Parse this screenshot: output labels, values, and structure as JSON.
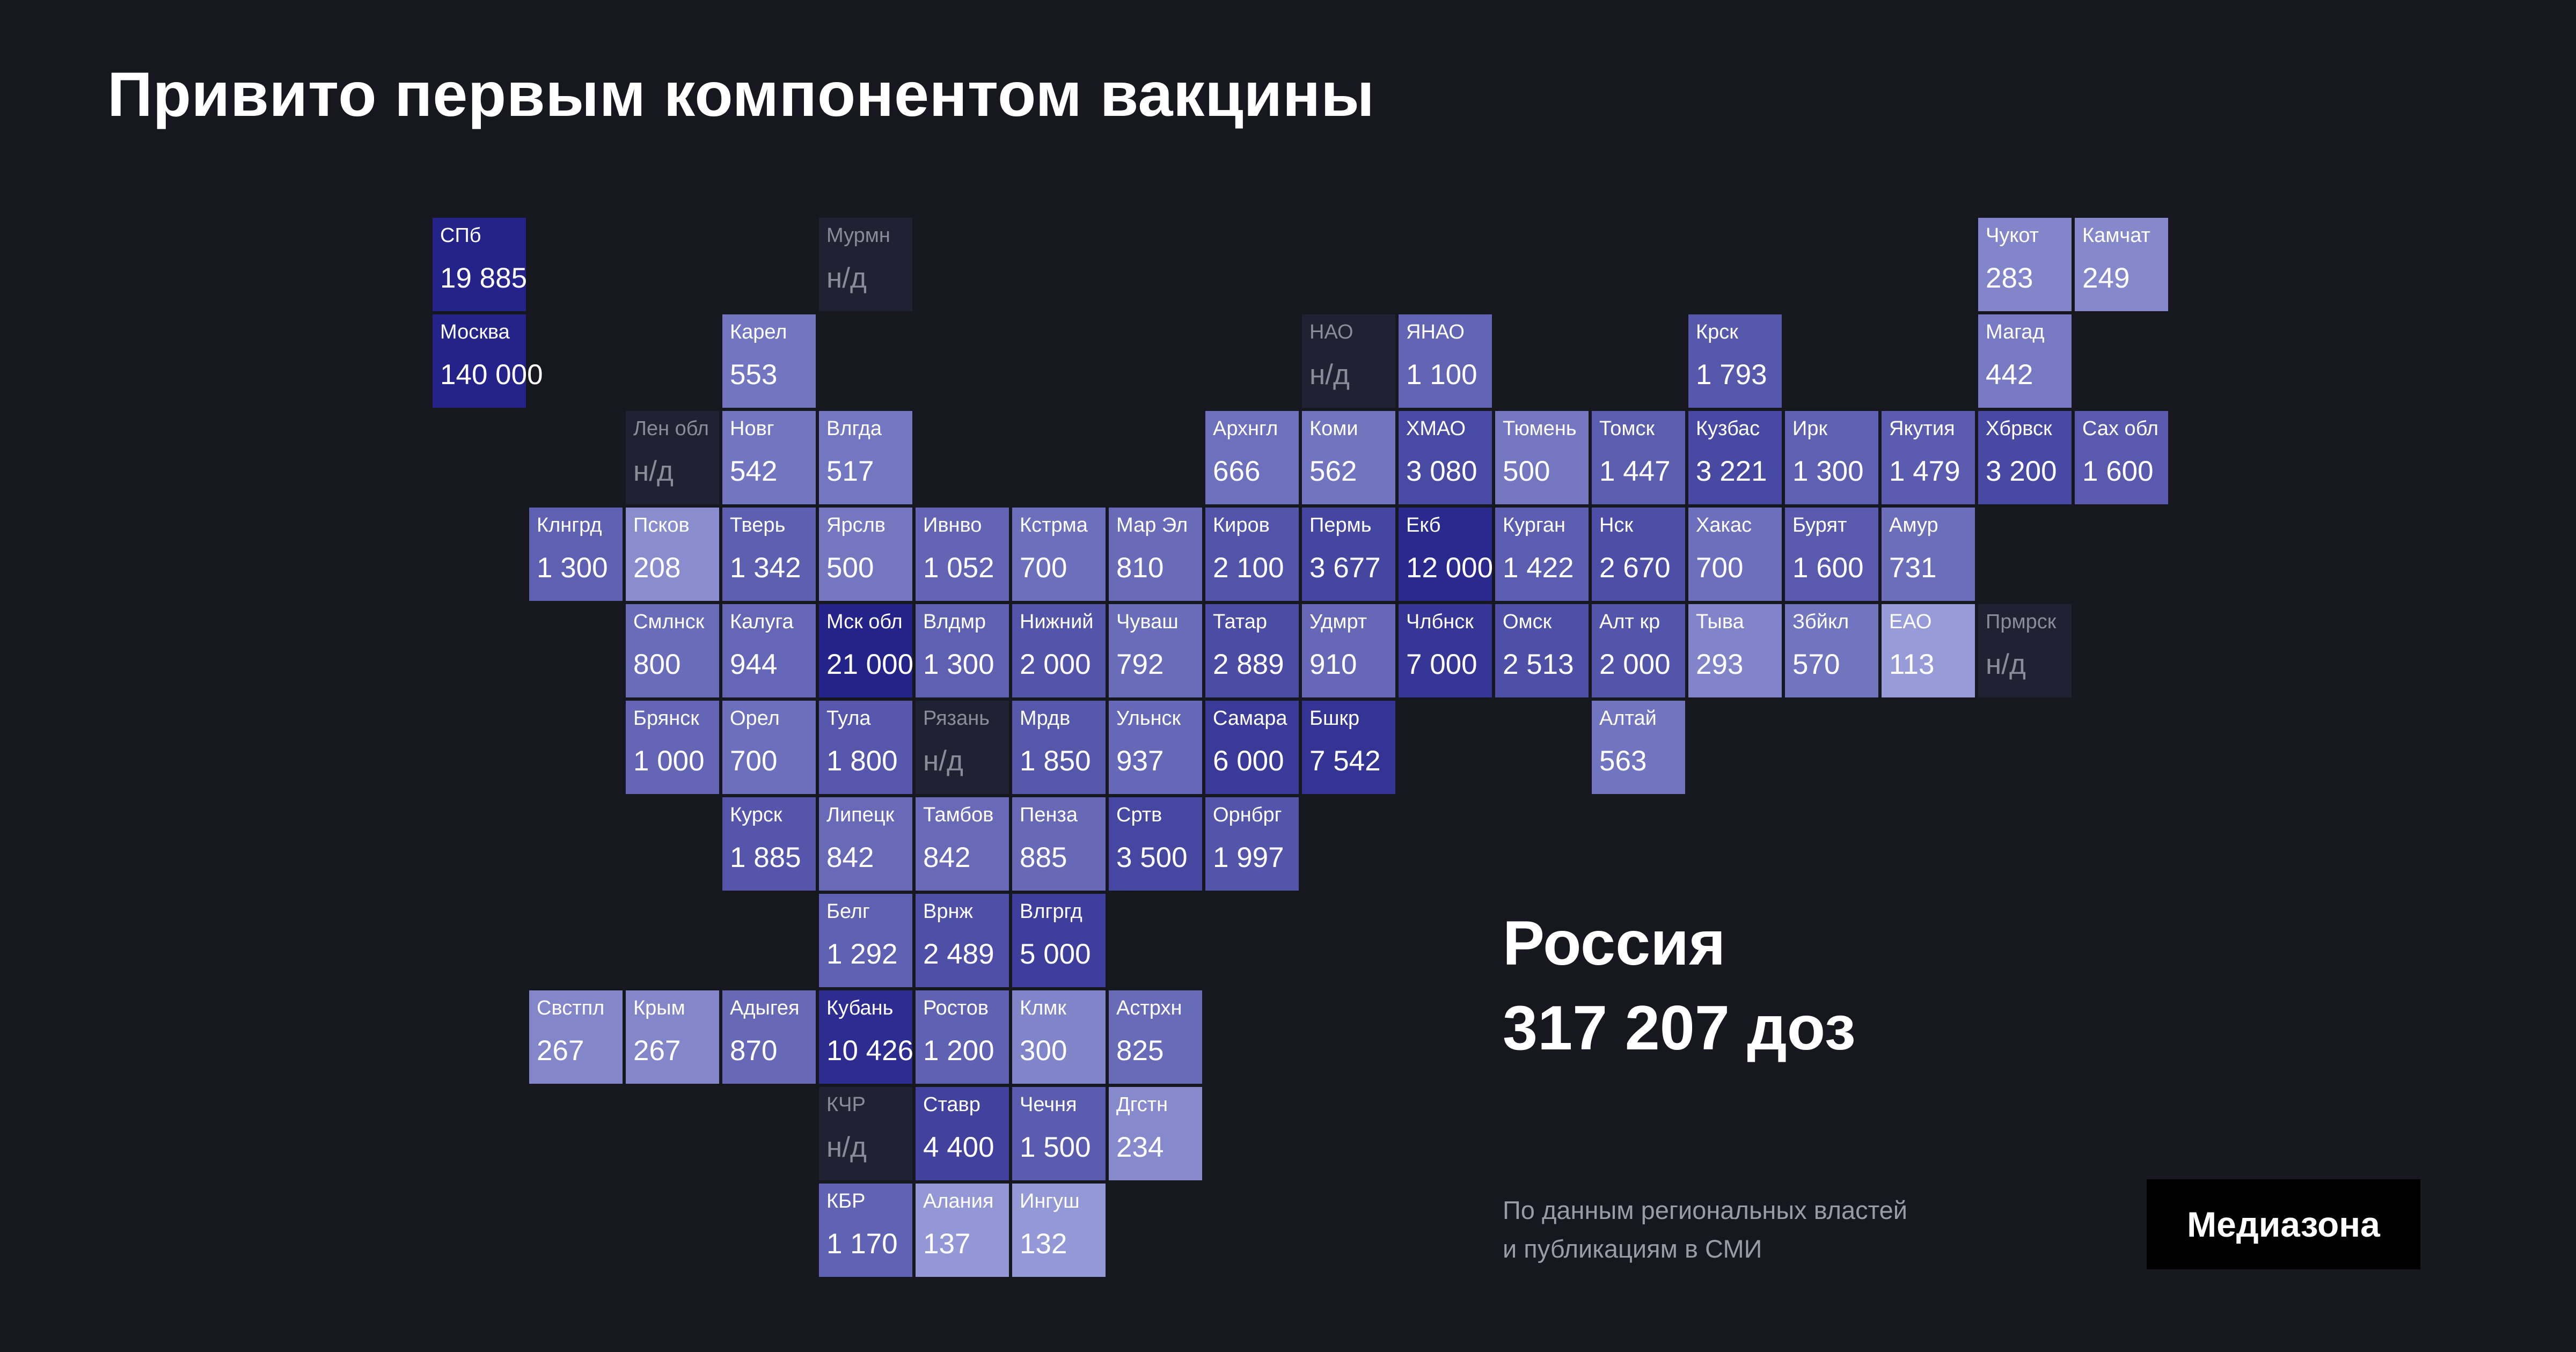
{
  "colors": {
    "background": "#17171f",
    "scale_low": "#9a9fda",
    "scale_high": "#24238a",
    "no_data": "#1e2232"
  },
  "chart_data": {
    "type": "heatmap",
    "title": "Привито первым компонентом вакцины",
    "no_data_label": "н/д",
    "total": {
      "label": "Россия",
      "value": "317 207 доз"
    },
    "cells": [
      {
        "name": "СПб",
        "value": 19885,
        "label": "19 885",
        "row": 0,
        "col": 0
      },
      {
        "name": "Мурмн",
        "value": null,
        "label": "н/д",
        "row": 0,
        "col": 4
      },
      {
        "name": "Чукот",
        "value": 283,
        "label": "283",
        "row": 0,
        "col": 16
      },
      {
        "name": "Камчат",
        "value": 249,
        "label": "249",
        "row": 0,
        "col": 17
      },
      {
        "name": "Москва",
        "value": 140000,
        "label": "140 000",
        "row": 1,
        "col": 0
      },
      {
        "name": "Карел",
        "value": 553,
        "label": "553",
        "row": 1,
        "col": 3
      },
      {
        "name": "НАО",
        "value": null,
        "label": "н/д",
        "row": 1,
        "col": 9
      },
      {
        "name": "ЯНАО",
        "value": 1100,
        "label": "1 100",
        "row": 1,
        "col": 10
      },
      {
        "name": "Крск",
        "value": 1793,
        "label": "1 793",
        "row": 1,
        "col": 13
      },
      {
        "name": "Магад",
        "value": 442,
        "label": "442",
        "row": 1,
        "col": 16
      },
      {
        "name": "Лен обл",
        "value": null,
        "label": "н/д",
        "row": 2,
        "col": 2
      },
      {
        "name": "Новг",
        "value": 542,
        "label": "542",
        "row": 2,
        "col": 3
      },
      {
        "name": "Влгда",
        "value": 517,
        "label": "517",
        "row": 2,
        "col": 4
      },
      {
        "name": "Архнгл",
        "value": 666,
        "label": "666",
        "row": 2,
        "col": 8
      },
      {
        "name": "Коми",
        "value": 562,
        "label": "562",
        "row": 2,
        "col": 9
      },
      {
        "name": "ХМАО",
        "value": 3080,
        "label": "3 080",
        "row": 2,
        "col": 10
      },
      {
        "name": "Тюмень",
        "value": 500,
        "label": "500",
        "row": 2,
        "col": 11
      },
      {
        "name": "Томск",
        "value": 1447,
        "label": "1 447",
        "row": 2,
        "col": 12
      },
      {
        "name": "Кузбас",
        "value": 3221,
        "label": "3 221",
        "row": 2,
        "col": 13
      },
      {
        "name": "Ирк",
        "value": 1300,
        "label": "1 300",
        "row": 2,
        "col": 14
      },
      {
        "name": "Якутия",
        "value": 1479,
        "label": "1 479",
        "row": 2,
        "col": 15
      },
      {
        "name": "Хбрвск",
        "value": 3200,
        "label": "3 200",
        "row": 2,
        "col": 16
      },
      {
        "name": "Сах обл",
        "value": 1600,
        "label": "1 600",
        "row": 2,
        "col": 17
      },
      {
        "name": "Клнгрд",
        "value": 1300,
        "label": "1 300",
        "row": 3,
        "col": 1
      },
      {
        "name": "Псков",
        "value": 208,
        "label": "208",
        "row": 3,
        "col": 2
      },
      {
        "name": "Тверь",
        "value": 1342,
        "label": "1 342",
        "row": 3,
        "col": 3
      },
      {
        "name": "Ярслв",
        "value": 500,
        "label": "500",
        "row": 3,
        "col": 4
      },
      {
        "name": "Ивнво",
        "value": 1052,
        "label": "1 052",
        "row": 3,
        "col": 5
      },
      {
        "name": "Кстрма",
        "value": 700,
        "label": "700",
        "row": 3,
        "col": 6
      },
      {
        "name": "Мар Эл",
        "value": 810,
        "label": "810",
        "row": 3,
        "col": 7
      },
      {
        "name": "Киров",
        "value": 2100,
        "label": "2 100",
        "row": 3,
        "col": 8
      },
      {
        "name": "Пермь",
        "value": 3677,
        "label": "3 677",
        "row": 3,
        "col": 9
      },
      {
        "name": "Екб",
        "value": 12000,
        "label": "12 000",
        "row": 3,
        "col": 10
      },
      {
        "name": "Курган",
        "value": 1422,
        "label": "1 422",
        "row": 3,
        "col": 11
      },
      {
        "name": "Нск",
        "value": 2670,
        "label": "2 670",
        "row": 3,
        "col": 12
      },
      {
        "name": "Хакас",
        "value": 700,
        "label": "700",
        "row": 3,
        "col": 13
      },
      {
        "name": "Бурят",
        "value": 1600,
        "label": "1 600",
        "row": 3,
        "col": 14
      },
      {
        "name": "Амур",
        "value": 731,
        "label": "731",
        "row": 3,
        "col": 15
      },
      {
        "name": "Смлнск",
        "value": 800,
        "label": "800",
        "row": 4,
        "col": 2
      },
      {
        "name": "Калуга",
        "value": 944,
        "label": "944",
        "row": 4,
        "col": 3
      },
      {
        "name": "Мск обл",
        "value": 21000,
        "label": "21 000",
        "row": 4,
        "col": 4
      },
      {
        "name": "Влдмр",
        "value": 1300,
        "label": "1 300",
        "row": 4,
        "col": 5
      },
      {
        "name": "Нижний",
        "value": 2000,
        "label": "2 000",
        "row": 4,
        "col": 6
      },
      {
        "name": "Чуваш",
        "value": 792,
        "label": "792",
        "row": 4,
        "col": 7
      },
      {
        "name": "Татар",
        "value": 2889,
        "label": "2 889",
        "row": 4,
        "col": 8
      },
      {
        "name": "Удмрт",
        "value": 910,
        "label": "910",
        "row": 4,
        "col": 9
      },
      {
        "name": "Члбнск",
        "value": 7000,
        "label": "7 000",
        "row": 4,
        "col": 10
      },
      {
        "name": "Омск",
        "value": 2513,
        "label": "2 513",
        "row": 4,
        "col": 11
      },
      {
        "name": "Алт кр",
        "value": 2000,
        "label": "2 000",
        "row": 4,
        "col": 12
      },
      {
        "name": "Тыва",
        "value": 293,
        "label": "293",
        "row": 4,
        "col": 13
      },
      {
        "name": "Збйкл",
        "value": 570,
        "label": "570",
        "row": 4,
        "col": 14
      },
      {
        "name": "ЕАО",
        "value": 113,
        "label": "113",
        "row": 4,
        "col": 15
      },
      {
        "name": "Прмрск",
        "value": null,
        "label": "н/д",
        "row": 4,
        "col": 16
      },
      {
        "name": "Брянск",
        "value": 1000,
        "label": "1 000",
        "row": 5,
        "col": 2
      },
      {
        "name": "Орел",
        "value": 700,
        "label": "700",
        "row": 5,
        "col": 3
      },
      {
        "name": "Тула",
        "value": 1800,
        "label": "1 800",
        "row": 5,
        "col": 4
      },
      {
        "name": "Рязань",
        "value": null,
        "label": "н/д",
        "row": 5,
        "col": 5
      },
      {
        "name": "Мрдв",
        "value": 1850,
        "label": "1 850",
        "row": 5,
        "col": 6
      },
      {
        "name": "Ульнск",
        "value": 937,
        "label": "937",
        "row": 5,
        "col": 7
      },
      {
        "name": "Самара",
        "value": 6000,
        "label": "6 000",
        "row": 5,
        "col": 8
      },
      {
        "name": "Бшкр",
        "value": 7542,
        "label": "7 542",
        "row": 5,
        "col": 9
      },
      {
        "name": "Алтай",
        "value": 563,
        "label": "563",
        "row": 5,
        "col": 12
      },
      {
        "name": "Курск",
        "value": 1885,
        "label": "1 885",
        "row": 6,
        "col": 3
      },
      {
        "name": "Липецк",
        "value": 842,
        "label": "842",
        "row": 6,
        "col": 4
      },
      {
        "name": "Тамбов",
        "value": 842,
        "label": "842",
        "row": 6,
        "col": 5
      },
      {
        "name": "Пенза",
        "value": 885,
        "label": "885",
        "row": 6,
        "col": 6
      },
      {
        "name": "Сртв",
        "value": 3500,
        "label": "3 500",
        "row": 6,
        "col": 7
      },
      {
        "name": "Орнбрг",
        "value": 1997,
        "label": "1 997",
        "row": 6,
        "col": 8
      },
      {
        "name": "Белг",
        "value": 1292,
        "label": "1 292",
        "row": 7,
        "col": 4
      },
      {
        "name": "Врнж",
        "value": 2489,
        "label": "2 489",
        "row": 7,
        "col": 5
      },
      {
        "name": "Влгргд",
        "value": 5000,
        "label": "5 000",
        "row": 7,
        "col": 6
      },
      {
        "name": "Свстпл",
        "value": 267,
        "label": "267",
        "row": 8,
        "col": 1
      },
      {
        "name": "Крым",
        "value": 267,
        "label": "267",
        "row": 8,
        "col": 2
      },
      {
        "name": "Адыгея",
        "value": 870,
        "label": "870",
        "row": 8,
        "col": 3
      },
      {
        "name": "Кубань",
        "value": 10426,
        "label": "10 426",
        "row": 8,
        "col": 4
      },
      {
        "name": "Ростов",
        "value": 1200,
        "label": "1 200",
        "row": 8,
        "col": 5
      },
      {
        "name": "Клмк",
        "value": 300,
        "label": "300",
        "row": 8,
        "col": 6
      },
      {
        "name": "Астрхн",
        "value": 825,
        "label": "825",
        "row": 8,
        "col": 7
      },
      {
        "name": "КЧР",
        "value": null,
        "label": "н/д",
        "row": 9,
        "col": 4
      },
      {
        "name": "Ставр",
        "value": 4400,
        "label": "4 400",
        "row": 9,
        "col": 5
      },
      {
        "name": "Чечня",
        "value": 1500,
        "label": "1 500",
        "row": 9,
        "col": 6
      },
      {
        "name": "Дгстн",
        "value": 234,
        "label": "234",
        "row": 9,
        "col": 7
      },
      {
        "name": "КБР",
        "value": 1170,
        "label": "1 170",
        "row": 10,
        "col": 4
      },
      {
        "name": "Алания",
        "value": 137,
        "label": "137",
        "row": 10,
        "col": 5
      },
      {
        "name": "Ингуш",
        "value": 132,
        "label": "132",
        "row": 10,
        "col": 6
      }
    ]
  },
  "source": {
    "line1": "По данным региональных властей",
    "line2": "и публикациям в СМИ"
  },
  "logo": "Медиазона"
}
